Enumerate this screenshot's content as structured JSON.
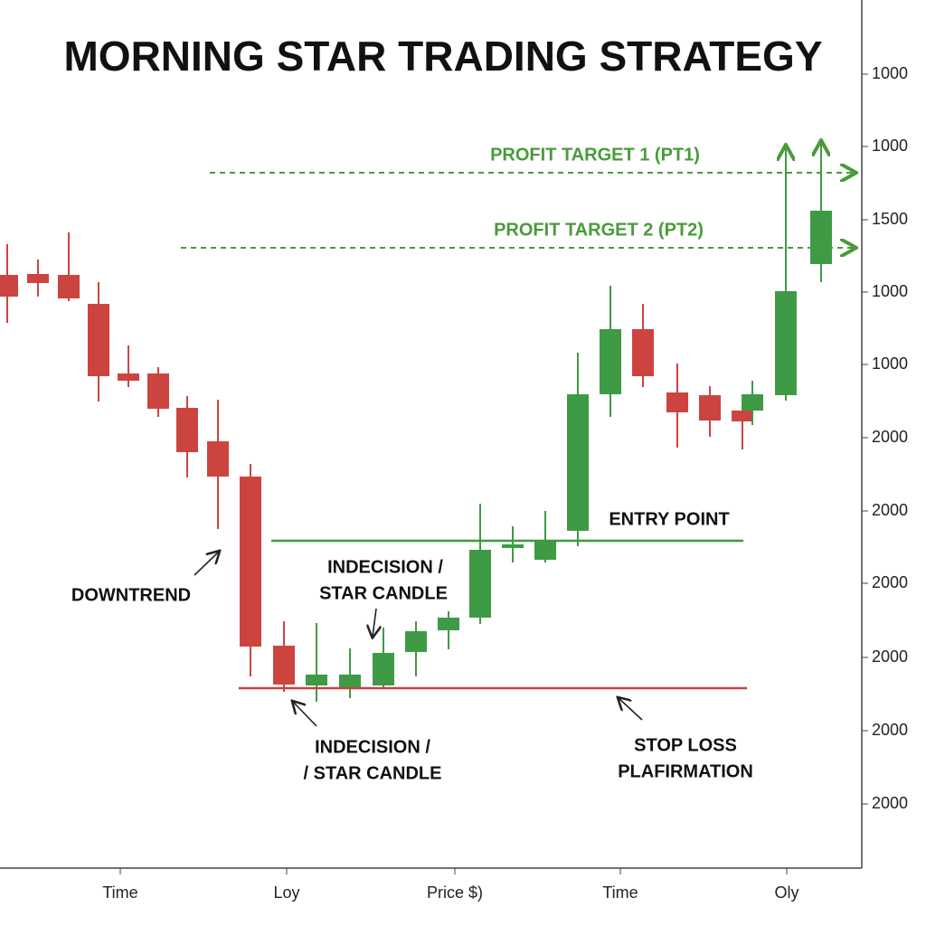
{
  "title": "MORNING STAR TRADING STRATEGY",
  "annotations": {
    "profit_target_1": "PROFIT TARGET 1 (PT1)",
    "profit_target_2": "PROFIT TARGET 2 (PT2)",
    "entry_point": "ENTRY POINT",
    "downtrend": "DOWNTREND",
    "indecision_upper": [
      "INDECISION /",
      "STAR CANDLE"
    ],
    "indecision_lower": [
      "INDECISION /",
      "/ STAR CANDLE"
    ],
    "stop_loss": [
      "STOP LOSS",
      "PLAFIRMATION"
    ]
  },
  "axis_labels": {
    "right": [
      1000,
      1000,
      1500,
      1000,
      1000,
      2000,
      2000,
      2000,
      2000,
      2000,
      2000
    ],
    "bottom": [
      "Time",
      "Loy",
      "Price $)",
      "Time",
      "Oly"
    ]
  }
}
